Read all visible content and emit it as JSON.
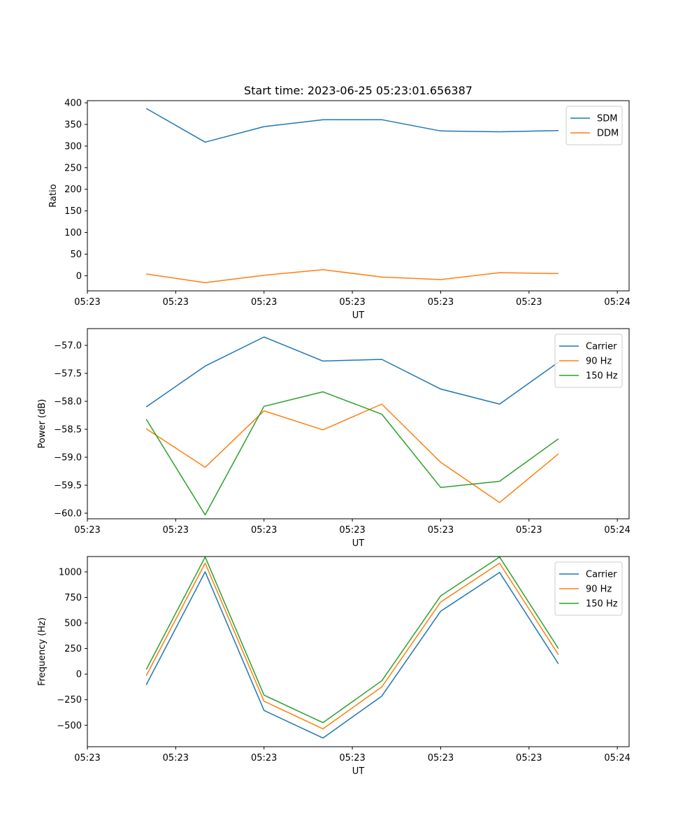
{
  "chart_data": [
    {
      "type": "line",
      "title": "Start time: 2023-06-25 05:23:01.656387",
      "xlabel": "UT",
      "ylabel": "Ratio",
      "x": [
        0.5,
        1.0,
        1.5,
        2.0,
        2.5,
        3.0,
        3.5,
        4.0
      ],
      "xlim": [
        0.0,
        4.6
      ],
      "xticks": [
        0.0,
        0.75,
        1.5,
        2.25,
        3.0,
        3.75,
        4.5
      ],
      "xtick_labels": [
        "05:23",
        "05:23",
        "05:23",
        "05:23",
        "05:23",
        "05:23",
        "05:24"
      ],
      "ylim": [
        -35,
        405
      ],
      "yticks": [
        0,
        50,
        100,
        150,
        200,
        250,
        300,
        350,
        400
      ],
      "grid": false,
      "legend": "top-right",
      "series": [
        {
          "name": "SDM",
          "color": "#1f77b4",
          "values": [
            387,
            309,
            345,
            361,
            361,
            335,
            333,
            336
          ]
        },
        {
          "name": "DDM",
          "color": "#ff7f0e",
          "values": [
            4,
            -16,
            1,
            14,
            -3,
            -9,
            7,
            5
          ]
        }
      ]
    },
    {
      "type": "line",
      "xlabel": "UT",
      "ylabel": "Power (dB)",
      "x": [
        0.5,
        1.0,
        1.5,
        2.0,
        2.5,
        3.0,
        3.5,
        4.0
      ],
      "xlim": [
        0.0,
        4.6
      ],
      "xticks": [
        0.0,
        0.75,
        1.5,
        2.25,
        3.0,
        3.75,
        4.5
      ],
      "xtick_labels": [
        "05:23",
        "05:23",
        "05:23",
        "05:23",
        "05:23",
        "05:23",
        "05:24"
      ],
      "ylim": [
        -60.1,
        -56.7
      ],
      "yticks": [
        -60.0,
        -59.5,
        -59.0,
        -58.5,
        -58.0,
        -57.5,
        -57.0
      ],
      "ytick_labels": [
        "−60.0",
        "−59.5",
        "−59.0",
        "−58.5",
        "−58.0",
        "−57.5",
        "−57.0"
      ],
      "grid": false,
      "legend": "top-right",
      "series": [
        {
          "name": "Carrier",
          "color": "#1f77b4",
          "values": [
            -58.1,
            -57.37,
            -56.85,
            -57.28,
            -57.25,
            -57.78,
            -58.05,
            -57.3
          ]
        },
        {
          "name": "90 Hz",
          "color": "#ff7f0e",
          "values": [
            -58.49,
            -59.18,
            -58.17,
            -58.51,
            -58.05,
            -59.09,
            -59.81,
            -58.94
          ]
        },
        {
          "name": "150 Hz",
          "color": "#2ca02c",
          "values": [
            -58.32,
            -60.03,
            -58.09,
            -57.83,
            -58.23,
            -59.54,
            -59.43,
            -58.67
          ]
        }
      ]
    },
    {
      "type": "line",
      "xlabel": "UT",
      "ylabel": "Frequency (Hz)",
      "x": [
        0.5,
        1.0,
        1.5,
        2.0,
        2.5,
        3.0,
        3.5,
        4.0
      ],
      "xlim": [
        0.0,
        4.6
      ],
      "xticks": [
        0.0,
        0.75,
        1.5,
        2.25,
        3.0,
        3.75,
        4.5
      ],
      "xtick_labels": [
        "05:23",
        "05:23",
        "05:23",
        "05:23",
        "05:23",
        "05:23",
        "05:24"
      ],
      "ylim": [
        -710,
        1150
      ],
      "yticks": [
        -500,
        -250,
        0,
        250,
        500,
        750,
        1000
      ],
      "ytick_labels": [
        "−500",
        "−250",
        "0",
        "250",
        "500",
        "750",
        "1000"
      ],
      "grid": false,
      "legend": "top-right",
      "series": [
        {
          "name": "Carrier",
          "color": "#1f77b4",
          "values": [
            -105,
            1000,
            -355,
            -625,
            -215,
            615,
            995,
            100
          ]
        },
        {
          "name": "90 Hz",
          "color": "#ff7f0e",
          "values": [
            -15,
            1085,
            -265,
            -535,
            -125,
            705,
            1085,
            190
          ]
        },
        {
          "name": "150 Hz",
          "color": "#2ca02c",
          "values": [
            45,
            1145,
            -205,
            -475,
            -65,
            765,
            1145,
            250
          ]
        }
      ]
    }
  ]
}
